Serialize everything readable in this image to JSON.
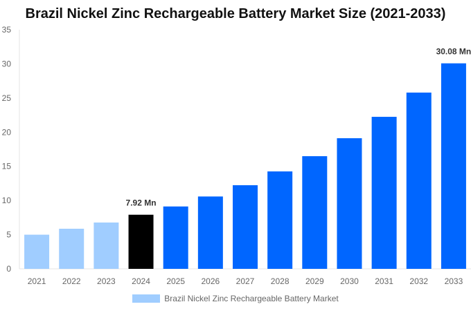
{
  "chart_data": {
    "type": "bar",
    "title": "Brazil Nickel Zinc Rechargeable Battery Market Size (2021-2033)",
    "categories": [
      "2021",
      "2022",
      "2023",
      "2024",
      "2025",
      "2026",
      "2027",
      "2028",
      "2029",
      "2030",
      "2031",
      "2032",
      "2033"
    ],
    "series": [
      {
        "name": "Brazil Nickel Zinc Rechargeable Battery Market",
        "values": [
          5.0,
          5.87,
          6.78,
          7.92,
          9.13,
          10.59,
          12.24,
          14.26,
          16.49,
          19.12,
          22.25,
          25.8,
          30.08
        ]
      }
    ],
    "bar_colors": {
      "historical": "#a0cdff",
      "base_year": "#000000",
      "forecast": "#0066ff"
    },
    "base_year": "2024",
    "data_labels": {
      "2024": "7.92 Mn",
      "2033": "30.08 Mn"
    },
    "ylim": [
      0,
      35
    ],
    "yticks": [
      0,
      5,
      10,
      15,
      20,
      25,
      30,
      35
    ],
    "xlabel": "",
    "ylabel": "",
    "grid": false,
    "legend": "bottom",
    "legend_color": "#a0cdff"
  }
}
